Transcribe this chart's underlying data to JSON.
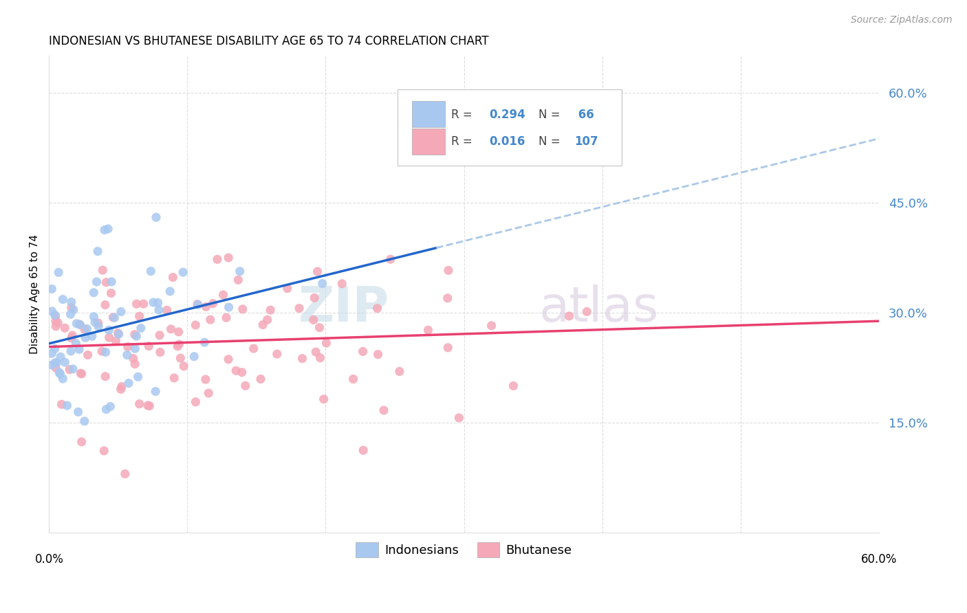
{
  "title": "INDONESIAN VS BHUTANESE DISABILITY AGE 65 TO 74 CORRELATION CHART",
  "source": "Source: ZipAtlas.com",
  "ylabel": "Disability Age 65 to 74",
  "ytick_labels": [
    "15.0%",
    "30.0%",
    "45.0%",
    "60.0%"
  ],
  "ytick_values": [
    0.15,
    0.3,
    0.45,
    0.6
  ],
  "xlim": [
    0.0,
    0.6
  ],
  "ylim": [
    0.0,
    0.65
  ],
  "legend_r1": "R = 0.294",
  "legend_n1": "N =  66",
  "legend_r2": "R = 0.016",
  "legend_n2": "N = 107",
  "indonesian_color": "#a8c8f0",
  "bhutanese_color": "#f4a8b8",
  "trendline_indonesian_solid_color": "#2266cc",
  "trendline_indonesian_dashed_color": "#aac8e8",
  "trendline_bhutanese_color": "#e84070",
  "indonesian_seed": 10,
  "bhutanese_seed": 20,
  "background_color": "#ffffff",
  "grid_color": "#dddddd",
  "ytick_color": "#4488cc",
  "watermark_zip_color": "#c8dce8",
  "watermark_atlas_color": "#d8cce0"
}
